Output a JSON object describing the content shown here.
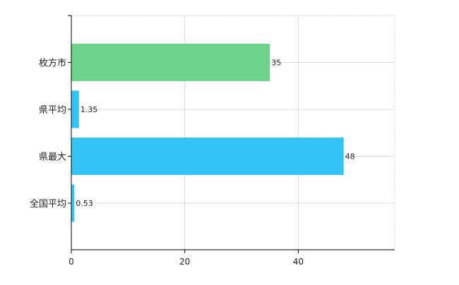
{
  "chart_data": {
    "type": "bar",
    "orientation": "horizontal",
    "categories": [
      "枚方市",
      "県平均",
      "県最大",
      "全国平均"
    ],
    "values": [
      35,
      1.35,
      48,
      0.53
    ],
    "value_labels": [
      "35",
      "1.35",
      "48",
      "0.53"
    ],
    "colors": [
      "#6dd38a",
      "#33c3f5",
      "#33c3f5",
      "#33c3f5"
    ],
    "xlim": [
      0,
      57
    ],
    "xticks": [
      0,
      20,
      40
    ],
    "grid": true
  }
}
